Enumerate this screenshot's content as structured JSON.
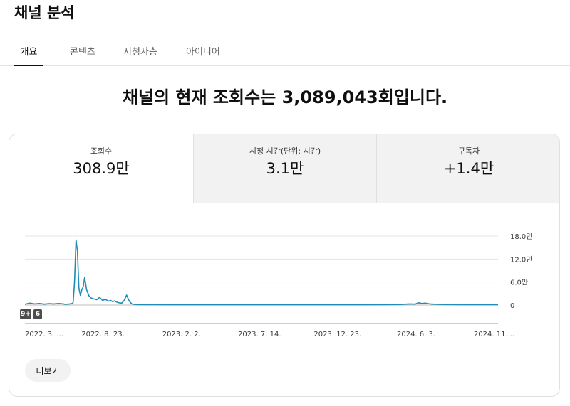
{
  "page": {
    "title": "채널 분석"
  },
  "tabs": [
    {
      "label": "개요",
      "active": true
    },
    {
      "label": "콘텐츠",
      "active": false
    },
    {
      "label": "시청자층",
      "active": false
    },
    {
      "label": "아이디어",
      "active": false
    }
  ],
  "headline": "채널의 현재 조회수는 3,089,043회입니다.",
  "metrics": [
    {
      "label": "조회수",
      "value": "308.9만",
      "selected": true
    },
    {
      "label": "시청 시간(단위: 시간)",
      "value": "3.1만",
      "selected": false
    },
    {
      "label": "구독자",
      "value": "+1.4만",
      "selected": false
    }
  ],
  "badges": [
    "9+",
    "6"
  ],
  "more_button": "더보기",
  "colors": {
    "series": "#1f8db5",
    "grid": "#e5e5e5"
  },
  "chart_data": {
    "type": "line",
    "y_tick_labels": [
      "18.0만",
      "12.0만",
      "6.0만",
      "0"
    ],
    "y_ticks": [
      180000,
      120000,
      60000,
      0
    ],
    "ylim": [
      0,
      180000
    ],
    "x_tick_labels": [
      "2022. 3. ...",
      "2022. 8. 23.",
      "2023. 2. 2.",
      "2023. 7. 14.",
      "2023. 12. 23.",
      "2024. 6. 3.",
      "2024. 11...."
    ],
    "x_ticks": [
      "2022-03-14",
      "2022-08-23",
      "2023-02-02",
      "2023-07-14",
      "2023-12-23",
      "2024-06-03",
      "2024-11-12"
    ],
    "xlim": [
      "2022-03-14",
      "2024-11-20"
    ],
    "grid": true,
    "series": [
      {
        "x": [
          "2022-03-14",
          "2022-03-24",
          "2022-04-03",
          "2022-04-13",
          "2022-04-23",
          "2022-05-03",
          "2022-05-13",
          "2022-05-23",
          "2022-06-02",
          "2022-06-05",
          "2022-06-10",
          "2022-06-15",
          "2022-06-20",
          "2022-06-22",
          "2022-06-25",
          "2022-06-28",
          "2022-07-01",
          "2022-07-04",
          "2022-07-07",
          "2022-07-10",
          "2022-07-13",
          "2022-07-16",
          "2022-07-20",
          "2022-07-25",
          "2022-07-30",
          "2022-08-04",
          "2022-08-10",
          "2022-08-16",
          "2022-08-22",
          "2022-08-28",
          "2022-09-03",
          "2022-09-08",
          "2022-09-12",
          "2022-09-16",
          "2022-09-20",
          "2022-09-25",
          "2022-10-01",
          "2022-10-06",
          "2022-10-11",
          "2022-10-15",
          "2022-10-18",
          "2022-10-22",
          "2022-10-28",
          "2022-11-06",
          "2022-11-20",
          "2022-12-05",
          "2022-12-25",
          "2023-01-20",
          "2023-02-15",
          "2023-04-01",
          "2023-06-01",
          "2023-08-01",
          "2023-10-01",
          "2023-12-01",
          "2024-02-01",
          "2024-04-01",
          "2024-05-01",
          "2024-05-20",
          "2024-06-01",
          "2024-06-08",
          "2024-06-15",
          "2024-06-22",
          "2024-07-01",
          "2024-07-15",
          "2024-08-01",
          "2024-09-01",
          "2024-10-01",
          "2024-11-01",
          "2024-11-20"
        ],
        "values": [
          2000,
          5000,
          3000,
          4000,
          2500,
          3500,
          3000,
          4000,
          3000,
          2000,
          2500,
          3000,
          4000,
          6000,
          60000,
          170000,
          140000,
          45000,
          25000,
          40000,
          48000,
          72000,
          40000,
          24000,
          18000,
          16000,
          14000,
          20000,
          12000,
          15000,
          10000,
          12000,
          9000,
          11000,
          8000,
          6000,
          5000,
          12000,
          26000,
          14000,
          8000,
          3000,
          1500,
          1200,
          1000,
          1000,
          800,
          800,
          800,
          800,
          800,
          800,
          800,
          800,
          800,
          1000,
          1500,
          3000,
          2500,
          6000,
          4000,
          5000,
          3000,
          2000,
          1500,
          1200,
          1000,
          1000,
          1000
        ]
      }
    ]
  }
}
